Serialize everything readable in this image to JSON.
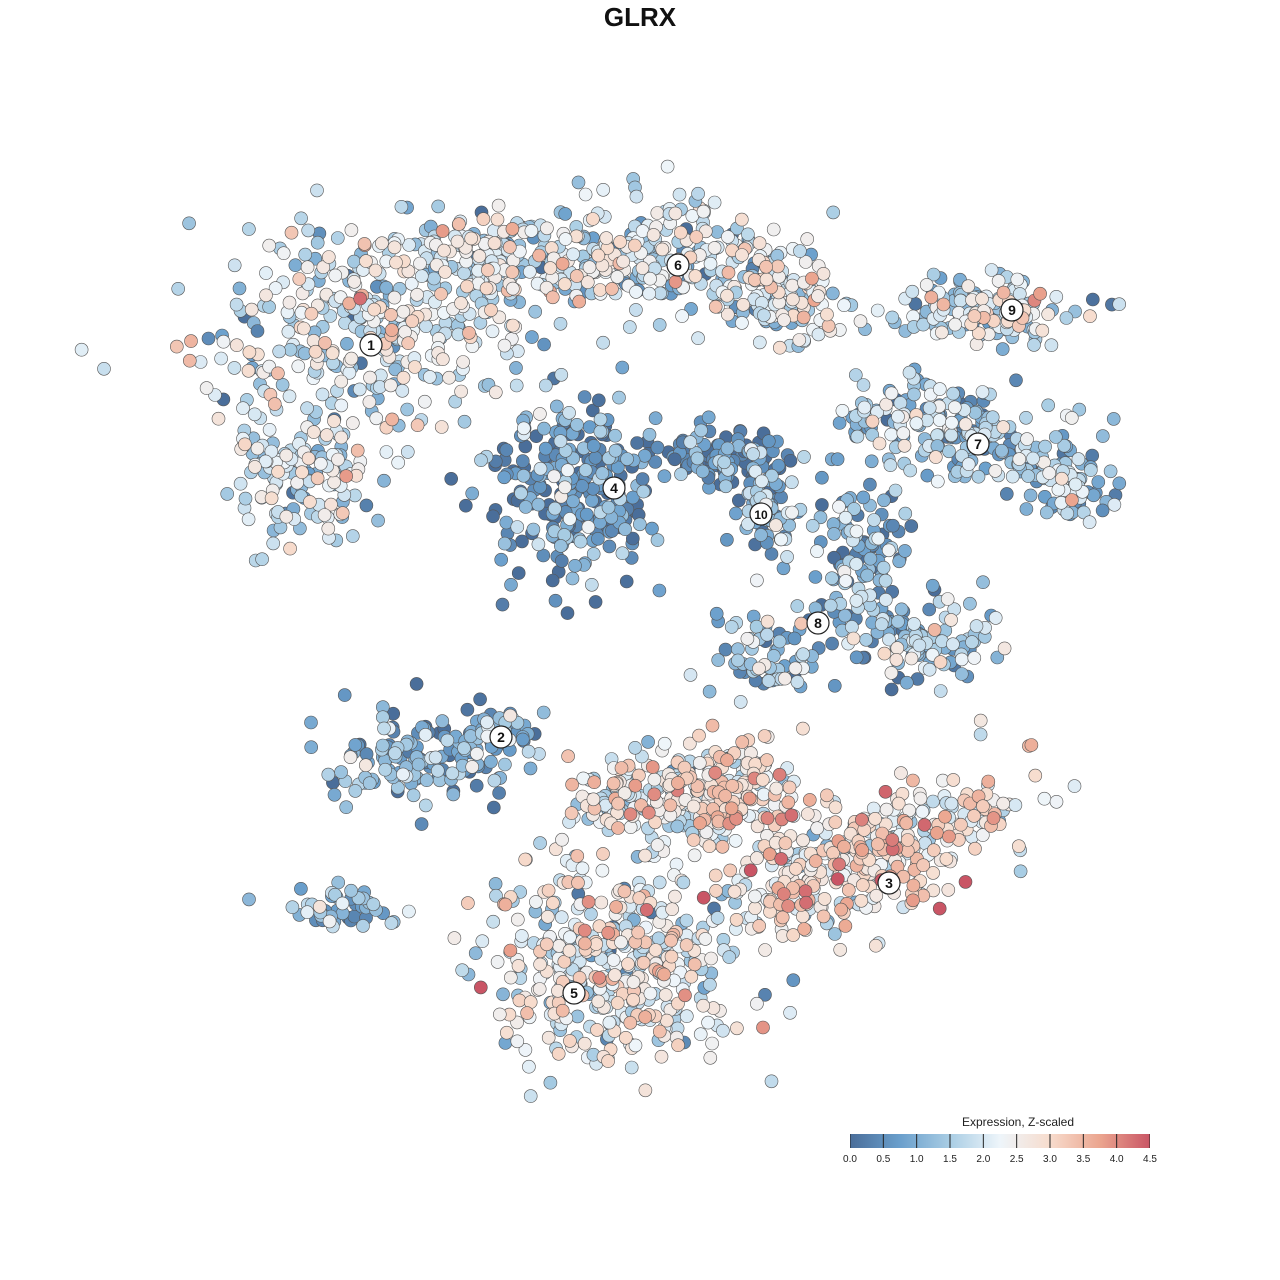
{
  "chart_data": {
    "type": "scatter",
    "title": "GLRX",
    "colorbar": {
      "label": "Expression, Z-scaled",
      "min": 0.0,
      "max": 4.5,
      "ticks": [
        "0.0",
        "0.5",
        "1.0",
        "1.5",
        "2.0",
        "2.5",
        "3.0",
        "3.5",
        "4.0",
        "4.5"
      ],
      "colors": [
        "#4a6e9a",
        "#6a9fcc",
        "#a9cde4",
        "#eef5fa",
        "#f7dccd",
        "#eba58f",
        "#c95565"
      ],
      "placement": "bottom-right"
    },
    "clusters": [
      {
        "label": "1",
        "mean_expression": 2.0
      },
      {
        "label": "2",
        "mean_expression": 1.0
      },
      {
        "label": "3",
        "mean_expression": 2.7
      },
      {
        "label": "4",
        "mean_expression": 0.5
      },
      {
        "label": "5",
        "mean_expression": 2.2
      },
      {
        "label": "6",
        "mean_expression": 1.9
      },
      {
        "label": "7",
        "mean_expression": 1.4
      },
      {
        "label": "8",
        "mean_expression": 1.1
      },
      {
        "label": "9",
        "mean_expression": 1.8
      },
      {
        "label": "10",
        "mean_expression": 1.0
      }
    ],
    "grid": false,
    "axes_visible": false
  }
}
